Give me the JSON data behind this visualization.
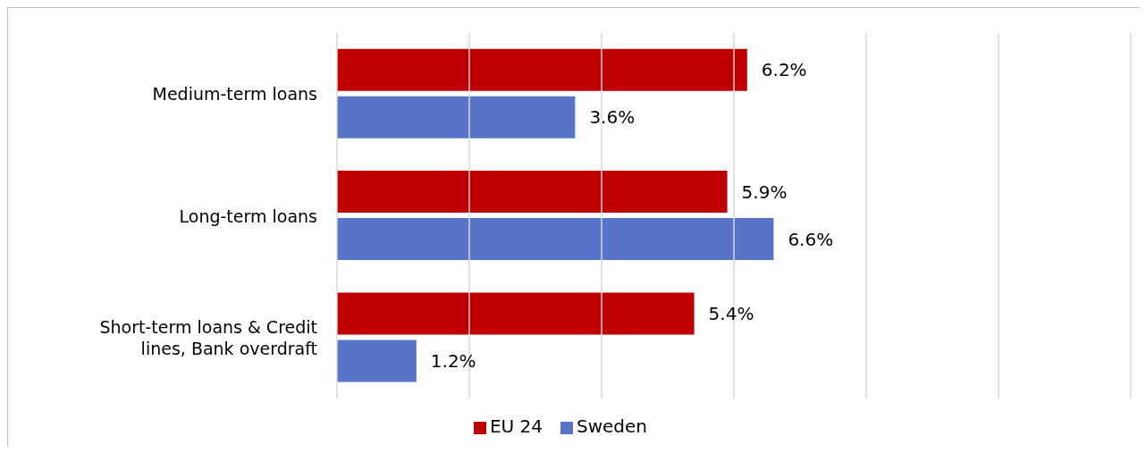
{
  "chart_data": {
    "type": "bar",
    "orientation": "horizontal",
    "categories": [
      "Medium-term loans",
      "Long-term loans",
      "Short-term loans & Credit lines, Bank overdraft"
    ],
    "series": [
      {
        "name": "EU 24",
        "color": "#c00000",
        "values": [
          6.2,
          5.9,
          5.4
        ],
        "value_labels": [
          "6.2%",
          "5.9%",
          "5.4%"
        ]
      },
      {
        "name": "Sweden",
        "color": "#5874c8",
        "values": [
          3.6,
          6.6,
          1.2
        ],
        "value_labels": [
          "3.6%",
          "6.6%",
          "1.2%"
        ]
      }
    ],
    "xlim": [
      0,
      12
    ],
    "xticks": [
      {
        "value": 0,
        "label": null
      },
      {
        "value": 2,
        "label": null
      },
      {
        "value": 4,
        "label": null
      },
      {
        "value": 6,
        "label": null
      },
      {
        "value": 8,
        "label": null
      },
      {
        "value": 10,
        "label": null
      },
      {
        "value": 12,
        "label": null
      }
    ],
    "grid": "x",
    "legend": "bottom",
    "tick_labels": "y"
  }
}
